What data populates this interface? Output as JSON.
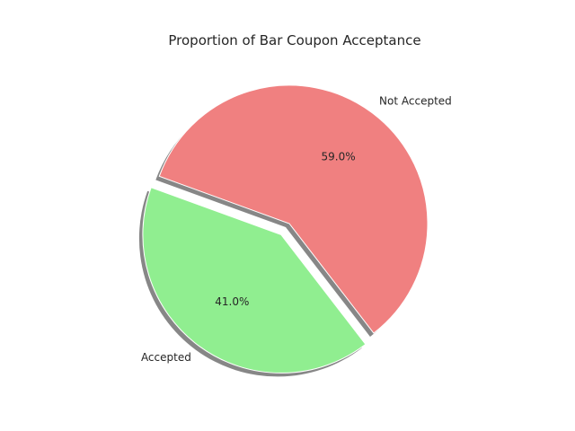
{
  "chart_data": {
    "type": "pie",
    "title": "Proportion of Bar Coupon Acceptance",
    "labels": [
      "Accepted",
      "Not Accepted"
    ],
    "values": [
      41.0,
      59.0
    ],
    "percent_labels": [
      "41.0%",
      "59.0%"
    ],
    "colors": [
      "#90ee90",
      "#f08080"
    ],
    "explode": [
      0.1,
      0
    ],
    "start_angle_deg": 160,
    "shadow": true
  }
}
